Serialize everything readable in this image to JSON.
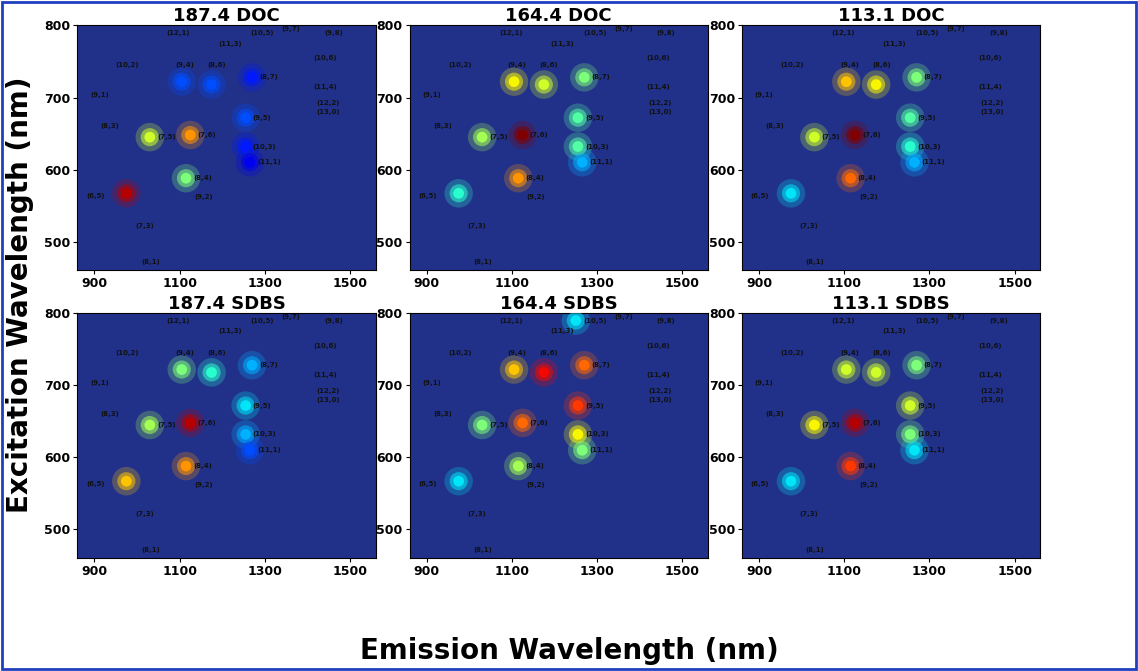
{
  "x_label": "Emission Wavelength (nm)",
  "y_label": "Excitation Wavelength (nm)",
  "chart_data": [
    {
      "type": "heatmap",
      "title": "187.4 DOC",
      "xlim": [
        860,
        1560
      ],
      "ylim": [
        460,
        800
      ],
      "xticks": [
        900,
        1100,
        1300,
        1500
      ],
      "yticks": [
        500,
        600,
        700,
        800
      ],
      "color_range": [
        0,
        1
      ],
      "peaks": {
        "emission": [
          975,
          1030,
          1125,
          1115,
          1105,
          1175,
          1270,
          1255,
          1255,
          1265
        ],
        "excitation": [
          567,
          645,
          648,
          588,
          722,
          718,
          728,
          672,
          632,
          610
        ],
        "intensity": [
          0.95,
          0.6,
          0.75,
          0.5,
          0.2,
          0.2,
          0.15,
          0.2,
          0.15,
          0.1
        ]
      },
      "annotations": [
        {
          "text": "(12,1)",
          "x": 1070,
          "y": 790
        },
        {
          "text": "(11,3)",
          "x": 1190,
          "y": 775
        },
        {
          "text": "(10,5)",
          "x": 1267,
          "y": 790
        },
        {
          "text": "(9,7)",
          "x": 1340,
          "y": 795
        },
        {
          "text": "(9,8)",
          "x": 1440,
          "y": 790
        },
        {
          "text": "(10,6)",
          "x": 1415,
          "y": 755
        },
        {
          "text": "(10,2)",
          "x": 950,
          "y": 745
        },
        {
          "text": "(9,4)",
          "x": 1090,
          "y": 745
        },
        {
          "text": "(8,6)",
          "x": 1165,
          "y": 745
        },
        {
          "text": "(8,7)",
          "x": 1287,
          "y": 728
        },
        {
          "text": "(11,4)",
          "x": 1415,
          "y": 715
        },
        {
          "text": "(12,2)",
          "x": 1420,
          "y": 692
        },
        {
          "text": "(13,0)",
          "x": 1420,
          "y": 680
        },
        {
          "text": "(9,1)",
          "x": 890,
          "y": 703
        },
        {
          "text": "(8,3)",
          "x": 915,
          "y": 660
        },
        {
          "text": "(7,5)",
          "x": 1047,
          "y": 645
        },
        {
          "text": "(7,6)",
          "x": 1142,
          "y": 648
        },
        {
          "text": "(9,5)",
          "x": 1272,
          "y": 672
        },
        {
          "text": "(10,3)",
          "x": 1272,
          "y": 632
        },
        {
          "text": "(11,1)",
          "x": 1282,
          "y": 610
        },
        {
          "text": "(8,4)",
          "x": 1132,
          "y": 588
        },
        {
          "text": "(9,2)",
          "x": 1135,
          "y": 562
        },
        {
          "text": "(6,5)",
          "x": 880,
          "y": 563
        },
        {
          "text": "(7,3)",
          "x": 995,
          "y": 522
        },
        {
          "text": "(8,1)",
          "x": 1010,
          "y": 472
        }
      ]
    },
    {
      "type": "heatmap",
      "title": "164.4 DOC",
      "xlim": [
        860,
        1560
      ],
      "ylim": [
        460,
        800
      ],
      "xticks": [
        900,
        1100,
        1300,
        1500
      ],
      "yticks": [
        500,
        600,
        700,
        800
      ],
      "color_range": [
        0,
        1
      ],
      "peaks": {
        "emission": [
          975,
          1030,
          1125,
          1115,
          1105,
          1175,
          1270,
          1255,
          1255,
          1265
        ],
        "excitation": [
          567,
          645,
          648,
          588,
          722,
          718,
          728,
          672,
          632,
          610
        ],
        "intensity": [
          0.4,
          0.55,
          1.0,
          0.75,
          0.65,
          0.6,
          0.5,
          0.45,
          0.45,
          0.3
        ]
      },
      "annotations": [
        {
          "text": "(12,1)",
          "x": 1070,
          "y": 790
        },
        {
          "text": "(11,3)",
          "x": 1190,
          "y": 775
        },
        {
          "text": "(10,5)",
          "x": 1267,
          "y": 790
        },
        {
          "text": "(9,7)",
          "x": 1340,
          "y": 795
        },
        {
          "text": "(9,8)",
          "x": 1440,
          "y": 790
        },
        {
          "text": "(10,6)",
          "x": 1415,
          "y": 755
        },
        {
          "text": "(10,2)",
          "x": 950,
          "y": 745
        },
        {
          "text": "(9,4)",
          "x": 1090,
          "y": 745
        },
        {
          "text": "(8,6)",
          "x": 1165,
          "y": 745
        },
        {
          "text": "(8,7)",
          "x": 1287,
          "y": 728
        },
        {
          "text": "(11,4)",
          "x": 1415,
          "y": 715
        },
        {
          "text": "(12,2)",
          "x": 1420,
          "y": 692
        },
        {
          "text": "(13,0)",
          "x": 1420,
          "y": 680
        },
        {
          "text": "(9,1)",
          "x": 890,
          "y": 703
        },
        {
          "text": "(8,3)",
          "x": 915,
          "y": 660
        },
        {
          "text": "(7,5)",
          "x": 1047,
          "y": 645
        },
        {
          "text": "(7,6)",
          "x": 1142,
          "y": 648
        },
        {
          "text": "(9,5)",
          "x": 1272,
          "y": 672
        },
        {
          "text": "(10,3)",
          "x": 1272,
          "y": 632
        },
        {
          "text": "(11,1)",
          "x": 1282,
          "y": 610
        },
        {
          "text": "(8,4)",
          "x": 1132,
          "y": 588
        },
        {
          "text": "(9,2)",
          "x": 1135,
          "y": 562
        },
        {
          "text": "(6,5)",
          "x": 880,
          "y": 563
        },
        {
          "text": "(7,3)",
          "x": 995,
          "y": 522
        },
        {
          "text": "(8,1)",
          "x": 1010,
          "y": 472
        }
      ]
    },
    {
      "type": "heatmap",
      "title": "113.1 DOC",
      "xlim": [
        860,
        1560
      ],
      "ylim": [
        460,
        800
      ],
      "xticks": [
        900,
        1100,
        1300,
        1500
      ],
      "yticks": [
        500,
        600,
        700,
        800
      ],
      "color_range": [
        0,
        1
      ],
      "peaks": {
        "emission": [
          975,
          1030,
          1125,
          1115,
          1105,
          1175,
          1270,
          1255,
          1255,
          1265
        ],
        "excitation": [
          567,
          645,
          648,
          588,
          722,
          718,
          728,
          672,
          632,
          610
        ],
        "intensity": [
          0.35,
          0.6,
          1.0,
          0.8,
          0.7,
          0.65,
          0.5,
          0.45,
          0.4,
          0.3
        ]
      },
      "annotations": [
        {
          "text": "(12,1)",
          "x": 1070,
          "y": 790
        },
        {
          "text": "(11,3)",
          "x": 1190,
          "y": 775
        },
        {
          "text": "(10,5)",
          "x": 1267,
          "y": 790
        },
        {
          "text": "(9,7)",
          "x": 1340,
          "y": 795
        },
        {
          "text": "(9,8)",
          "x": 1440,
          "y": 790
        },
        {
          "text": "(10,6)",
          "x": 1415,
          "y": 755
        },
        {
          "text": "(10,2)",
          "x": 950,
          "y": 745
        },
        {
          "text": "(9,4)",
          "x": 1090,
          "y": 745
        },
        {
          "text": "(8,6)",
          "x": 1165,
          "y": 745
        },
        {
          "text": "(8,7)",
          "x": 1287,
          "y": 728
        },
        {
          "text": "(11,4)",
          "x": 1415,
          "y": 715
        },
        {
          "text": "(12,2)",
          "x": 1420,
          "y": 692
        },
        {
          "text": "(13,0)",
          "x": 1420,
          "y": 680
        },
        {
          "text": "(9,1)",
          "x": 890,
          "y": 703
        },
        {
          "text": "(8,3)",
          "x": 915,
          "y": 660
        },
        {
          "text": "(7,5)",
          "x": 1047,
          "y": 645
        },
        {
          "text": "(7,6)",
          "x": 1142,
          "y": 648
        },
        {
          "text": "(9,5)",
          "x": 1272,
          "y": 672
        },
        {
          "text": "(10,3)",
          "x": 1272,
          "y": 632
        },
        {
          "text": "(11,1)",
          "x": 1282,
          "y": 610
        },
        {
          "text": "(8,4)",
          "x": 1132,
          "y": 588
        },
        {
          "text": "(9,2)",
          "x": 1135,
          "y": 562
        },
        {
          "text": "(6,5)",
          "x": 880,
          "y": 563
        },
        {
          "text": "(7,3)",
          "x": 995,
          "y": 522
        },
        {
          "text": "(8,1)",
          "x": 1010,
          "y": 472
        }
      ]
    },
    {
      "type": "heatmap",
      "title": "187.4 SDBS",
      "xlim": [
        860,
        1560
      ],
      "ylim": [
        460,
        800
      ],
      "xticks": [
        900,
        1100,
        1300,
        1500
      ],
      "yticks": [
        500,
        600,
        700,
        800
      ],
      "color_range": [
        0,
        1
      ],
      "peaks": {
        "emission": [
          975,
          1030,
          1125,
          1115,
          1105,
          1175,
          1270,
          1255,
          1255,
          1265
        ],
        "excitation": [
          567,
          645,
          648,
          588,
          722,
          718,
          728,
          672,
          632,
          610
        ],
        "intensity": [
          0.7,
          0.55,
          0.95,
          0.75,
          0.5,
          0.4,
          0.3,
          0.35,
          0.3,
          0.2
        ]
      },
      "annotations": [
        {
          "text": "(12,1)",
          "x": 1070,
          "y": 790
        },
        {
          "text": "(11,3)",
          "x": 1190,
          "y": 775
        },
        {
          "text": "(10,5)",
          "x": 1267,
          "y": 790
        },
        {
          "text": "(9,7)",
          "x": 1340,
          "y": 795
        },
        {
          "text": "(9,8)",
          "x": 1440,
          "y": 790
        },
        {
          "text": "(10,6)",
          "x": 1415,
          "y": 755
        },
        {
          "text": "(10,2)",
          "x": 950,
          "y": 745
        },
        {
          "text": "(9,4)",
          "x": 1090,
          "y": 745
        },
        {
          "text": "(8,6)",
          "x": 1165,
          "y": 745
        },
        {
          "text": "(8,7)",
          "x": 1287,
          "y": 728
        },
        {
          "text": "(11,4)",
          "x": 1415,
          "y": 715
        },
        {
          "text": "(12,2)",
          "x": 1420,
          "y": 692
        },
        {
          "text": "(13,0)",
          "x": 1420,
          "y": 680
        },
        {
          "text": "(9,1)",
          "x": 890,
          "y": 703
        },
        {
          "text": "(8,3)",
          "x": 915,
          "y": 660
        },
        {
          "text": "(7,5)",
          "x": 1047,
          "y": 645
        },
        {
          "text": "(7,6)",
          "x": 1142,
          "y": 648
        },
        {
          "text": "(9,5)",
          "x": 1272,
          "y": 672
        },
        {
          "text": "(10,3)",
          "x": 1272,
          "y": 632
        },
        {
          "text": "(11,1)",
          "x": 1282,
          "y": 610
        },
        {
          "text": "(8,4)",
          "x": 1132,
          "y": 588
        },
        {
          "text": "(9,2)",
          "x": 1135,
          "y": 562
        },
        {
          "text": "(6,5)",
          "x": 880,
          "y": 563
        },
        {
          "text": "(7,3)",
          "x": 995,
          "y": 522
        },
        {
          "text": "(8,1)",
          "x": 1010,
          "y": 472
        }
      ]
    },
    {
      "type": "heatmap",
      "title": "164.4 SDBS",
      "xlim": [
        860,
        1560
      ],
      "ylim": [
        460,
        800
      ],
      "xticks": [
        900,
        1100,
        1300,
        1500
      ],
      "yticks": [
        500,
        600,
        700,
        800
      ],
      "color_range": [
        0,
        1
      ],
      "peaks": {
        "emission": [
          975,
          1030,
          1125,
          1115,
          1105,
          1175,
          1270,
          1255,
          1255,
          1265,
          1250
        ],
        "excitation": [
          567,
          645,
          648,
          588,
          722,
          718,
          728,
          672,
          632,
          610,
          790
        ],
        "intensity": [
          0.35,
          0.5,
          0.8,
          0.55,
          0.7,
          0.9,
          0.8,
          0.85,
          0.65,
          0.5,
          0.35
        ]
      },
      "annotations": [
        {
          "text": "(12,1)",
          "x": 1070,
          "y": 790
        },
        {
          "text": "(11,3)",
          "x": 1190,
          "y": 775
        },
        {
          "text": "(10,5)",
          "x": 1267,
          "y": 790
        },
        {
          "text": "(9,7)",
          "x": 1340,
          "y": 795
        },
        {
          "text": "(9,8)",
          "x": 1440,
          "y": 790
        },
        {
          "text": "(10,6)",
          "x": 1415,
          "y": 755
        },
        {
          "text": "(10,2)",
          "x": 950,
          "y": 745
        },
        {
          "text": "(9,4)",
          "x": 1090,
          "y": 745
        },
        {
          "text": "(8,6)",
          "x": 1165,
          "y": 745
        },
        {
          "text": "(8,7)",
          "x": 1287,
          "y": 728
        },
        {
          "text": "(11,4)",
          "x": 1415,
          "y": 715
        },
        {
          "text": "(12,2)",
          "x": 1420,
          "y": 692
        },
        {
          "text": "(13,0)",
          "x": 1420,
          "y": 680
        },
        {
          "text": "(9,1)",
          "x": 890,
          "y": 703
        },
        {
          "text": "(8,3)",
          "x": 915,
          "y": 660
        },
        {
          "text": "(7,5)",
          "x": 1047,
          "y": 645
        },
        {
          "text": "(7,6)",
          "x": 1142,
          "y": 648
        },
        {
          "text": "(9,5)",
          "x": 1272,
          "y": 672
        },
        {
          "text": "(10,3)",
          "x": 1272,
          "y": 632
        },
        {
          "text": "(11,1)",
          "x": 1282,
          "y": 610
        },
        {
          "text": "(8,4)",
          "x": 1132,
          "y": 588
        },
        {
          "text": "(9,2)",
          "x": 1135,
          "y": 562
        },
        {
          "text": "(6,5)",
          "x": 880,
          "y": 563
        },
        {
          "text": "(7,3)",
          "x": 995,
          "y": 522
        },
        {
          "text": "(8,1)",
          "x": 1010,
          "y": 472
        }
      ]
    },
    {
      "type": "heatmap",
      "title": "113.1 SDBS",
      "xlim": [
        860,
        1560
      ],
      "ylim": [
        460,
        800
      ],
      "xticks": [
        900,
        1100,
        1300,
        1500
      ],
      "yticks": [
        500,
        600,
        700,
        800
      ],
      "color_range": [
        0,
        1
      ],
      "peaks": {
        "emission": [
          975,
          1030,
          1125,
          1115,
          1105,
          1175,
          1270,
          1255,
          1255,
          1265
        ],
        "excitation": [
          567,
          645,
          648,
          588,
          722,
          718,
          728,
          672,
          632,
          610
        ],
        "intensity": [
          0.35,
          0.65,
          0.95,
          0.85,
          0.6,
          0.6,
          0.5,
          0.6,
          0.5,
          0.35
        ]
      },
      "annotations": [
        {
          "text": "(12,1)",
          "x": 1070,
          "y": 790
        },
        {
          "text": "(11,3)",
          "x": 1190,
          "y": 775
        },
        {
          "text": "(10,5)",
          "x": 1267,
          "y": 790
        },
        {
          "text": "(9,7)",
          "x": 1340,
          "y": 795
        },
        {
          "text": "(9,8)",
          "x": 1440,
          "y": 790
        },
        {
          "text": "(10,6)",
          "x": 1415,
          "y": 755
        },
        {
          "text": "(10,2)",
          "x": 950,
          "y": 745
        },
        {
          "text": "(9,4)",
          "x": 1090,
          "y": 745
        },
        {
          "text": "(8,6)",
          "x": 1165,
          "y": 745
        },
        {
          "text": "(8,7)",
          "x": 1287,
          "y": 728
        },
        {
          "text": "(11,4)",
          "x": 1415,
          "y": 715
        },
        {
          "text": "(12,2)",
          "x": 1420,
          "y": 692
        },
        {
          "text": "(13,0)",
          "x": 1420,
          "y": 680
        },
        {
          "text": "(9,1)",
          "x": 890,
          "y": 703
        },
        {
          "text": "(8,3)",
          "x": 915,
          "y": 660
        },
        {
          "text": "(7,5)",
          "x": 1047,
          "y": 645
        },
        {
          "text": "(7,6)",
          "x": 1142,
          "y": 648
        },
        {
          "text": "(9,5)",
          "x": 1272,
          "y": 672
        },
        {
          "text": "(10,3)",
          "x": 1272,
          "y": 632
        },
        {
          "text": "(11,1)",
          "x": 1282,
          "y": 610
        },
        {
          "text": "(8,4)",
          "x": 1132,
          "y": 588
        },
        {
          "text": "(9,2)",
          "x": 1135,
          "y": 562
        },
        {
          "text": "(6,5)",
          "x": 880,
          "y": 563
        },
        {
          "text": "(7,3)",
          "x": 995,
          "y": 522
        },
        {
          "text": "(8,1)",
          "x": 1010,
          "y": 472
        }
      ]
    }
  ]
}
